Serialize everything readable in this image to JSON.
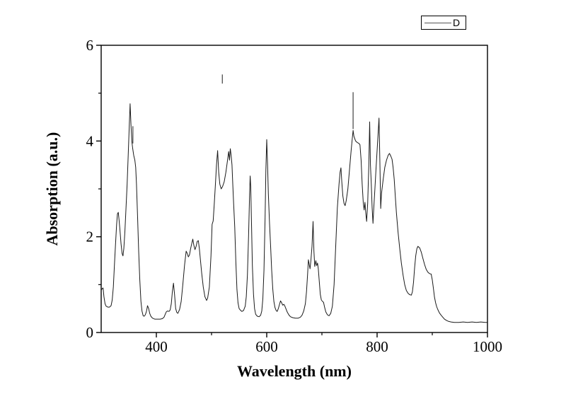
{
  "figure": {
    "background": "#ffffff",
    "frame_color": "#000000"
  },
  "chart_data": {
    "type": "line",
    "title": "",
    "xlabel": "Wavelength (nm)",
    "ylabel": "Absorption (a.u.)",
    "legend": [
      "D"
    ],
    "legend_position": "top-right-above-frame",
    "grid": false,
    "line_color": "#1a1a1a",
    "xlim": [
      300,
      1000
    ],
    "ylim": [
      0,
      6
    ],
    "x_major_ticks": [
      400,
      600,
      800,
      1000
    ],
    "x_minor_ticks": [
      500,
      700,
      900
    ],
    "y_major_ticks": [
      0,
      2,
      4,
      6
    ],
    "y_minor_ticks": [
      1,
      3,
      5
    ],
    "series": [
      {
        "name": "D",
        "points": [
          [
            300,
            0.88
          ],
          [
            302,
            0.92
          ],
          [
            303.5,
            0.93
          ],
          [
            305,
            0.75
          ],
          [
            307,
            0.6
          ],
          [
            309,
            0.55
          ],
          [
            312,
            0.53
          ],
          [
            315,
            0.53
          ],
          [
            318,
            0.56
          ],
          [
            320,
            0.68
          ],
          [
            322,
            0.95
          ],
          [
            324,
            1.4
          ],
          [
            326,
            1.85
          ],
          [
            328,
            2.25
          ],
          [
            329.5,
            2.48
          ],
          [
            331,
            2.51
          ],
          [
            332.5,
            2.35
          ],
          [
            334,
            2.15
          ],
          [
            336,
            1.85
          ],
          [
            338,
            1.65
          ],
          [
            339.5,
            1.6
          ],
          [
            341,
            1.75
          ],
          [
            343,
            2.1
          ],
          [
            345,
            2.6
          ],
          [
            347,
            3.1
          ],
          [
            349,
            3.7
          ],
          [
            351,
            4.35
          ],
          [
            352.5,
            4.78
          ],
          [
            354,
            4.35
          ],
          [
            355.5,
            4.0
          ],
          [
            357,
            3.85
          ],
          [
            359,
            3.7
          ],
          [
            361,
            3.6
          ],
          [
            362.5,
            3.45
          ],
          [
            364,
            3.1
          ],
          [
            366,
            2.4
          ],
          [
            368,
            1.7
          ],
          [
            370,
            1.1
          ],
          [
            372,
            0.65
          ],
          [
            374,
            0.45
          ],
          [
            376,
            0.35
          ],
          [
            378,
            0.34
          ],
          [
            380,
            0.37
          ],
          [
            382,
            0.44
          ],
          [
            384,
            0.56
          ],
          [
            386,
            0.5
          ],
          [
            388,
            0.4
          ],
          [
            390,
            0.34
          ],
          [
            393,
            0.3
          ],
          [
            397,
            0.28
          ],
          [
            402,
            0.28
          ],
          [
            407,
            0.28
          ],
          [
            411,
            0.29
          ],
          [
            414,
            0.32
          ],
          [
            416,
            0.38
          ],
          [
            418,
            0.43
          ],
          [
            420,
            0.45
          ],
          [
            423,
            0.44
          ],
          [
            425,
            0.47
          ],
          [
            427,
            0.6
          ],
          [
            429,
            0.85
          ],
          [
            431,
            1.03
          ],
          [
            433,
            0.8
          ],
          [
            435,
            0.5
          ],
          [
            437,
            0.42
          ],
          [
            439,
            0.4
          ],
          [
            442,
            0.48
          ],
          [
            445,
            0.65
          ],
          [
            448,
            1.0
          ],
          [
            451,
            1.4
          ],
          [
            454,
            1.7
          ],
          [
            456,
            1.65
          ],
          [
            458,
            1.58
          ],
          [
            460,
            1.62
          ],
          [
            462,
            1.75
          ],
          [
            464,
            1.85
          ],
          [
            466,
            1.95
          ],
          [
            468,
            1.82
          ],
          [
            470,
            1.73
          ],
          [
            472,
            1.8
          ],
          [
            474,
            1.9
          ],
          [
            476,
            1.92
          ],
          [
            478,
            1.75
          ],
          [
            480,
            1.5
          ],
          [
            482,
            1.25
          ],
          [
            485,
            0.95
          ],
          [
            488,
            0.75
          ],
          [
            491,
            0.67
          ],
          [
            493,
            0.72
          ],
          [
            496,
            0.95
          ],
          [
            499,
            1.6
          ],
          [
            501,
            2.26
          ],
          [
            503,
            2.33
          ],
          [
            505,
            2.7
          ],
          [
            507,
            3.1
          ],
          [
            509,
            3.5
          ],
          [
            511,
            3.8
          ],
          [
            513,
            3.35
          ],
          [
            515,
            3.1
          ],
          [
            517.5,
            3.0
          ],
          [
            520,
            3.05
          ],
          [
            523,
            3.15
          ],
          [
            526,
            3.35
          ],
          [
            529,
            3.6
          ],
          [
            531,
            3.78
          ],
          [
            532.5,
            3.6
          ],
          [
            534,
            3.84
          ],
          [
            535.5,
            3.7
          ],
          [
            537,
            3.5
          ],
          [
            538.5,
            3.1
          ],
          [
            540,
            2.7
          ],
          [
            542,
            2.2
          ],
          [
            544,
            1.5
          ],
          [
            546,
            0.9
          ],
          [
            548,
            0.62
          ],
          [
            550,
            0.5
          ],
          [
            552,
            0.47
          ],
          [
            555,
            0.44
          ],
          [
            558,
            0.46
          ],
          [
            561,
            0.55
          ],
          [
            563,
            0.75
          ],
          [
            565,
            1.2
          ],
          [
            567,
            2.0
          ],
          [
            569,
            2.9
          ],
          [
            570,
            3.27
          ],
          [
            571,
            3.05
          ],
          [
            572.5,
            2.2
          ],
          [
            574,
            1.4
          ],
          [
            576,
            0.8
          ],
          [
            578,
            0.5
          ],
          [
            580,
            0.38
          ],
          [
            583,
            0.34
          ],
          [
            586,
            0.33
          ],
          [
            589,
            0.36
          ],
          [
            591,
            0.45
          ],
          [
            593,
            0.7
          ],
          [
            595,
            1.3
          ],
          [
            597,
            2.4
          ],
          [
            598.5,
            3.4
          ],
          [
            600,
            4.03
          ],
          [
            601.5,
            3.5
          ],
          [
            603,
            2.9
          ],
          [
            605,
            2.3
          ],
          [
            607,
            1.8
          ],
          [
            609,
            1.3
          ],
          [
            611,
            0.9
          ],
          [
            613,
            0.65
          ],
          [
            615,
            0.52
          ],
          [
            617,
            0.46
          ],
          [
            619,
            0.44
          ],
          [
            621,
            0.5
          ],
          [
            623,
            0.58
          ],
          [
            625,
            0.66
          ],
          [
            627,
            0.62
          ],
          [
            629,
            0.57
          ],
          [
            631,
            0.59
          ],
          [
            633,
            0.55
          ],
          [
            635,
            0.49
          ],
          [
            637,
            0.43
          ],
          [
            640,
            0.37
          ],
          [
            643,
            0.33
          ],
          [
            647,
            0.31
          ],
          [
            652,
            0.3
          ],
          [
            657,
            0.3
          ],
          [
            661,
            0.32
          ],
          [
            664,
            0.36
          ],
          [
            667,
            0.45
          ],
          [
            670,
            0.6
          ],
          [
            672,
            0.85
          ],
          [
            674,
            1.2
          ],
          [
            675.5,
            1.52
          ],
          [
            677,
            1.42
          ],
          [
            678.5,
            1.33
          ],
          [
            680,
            1.5
          ],
          [
            682,
            1.8
          ],
          [
            684,
            2.32
          ],
          [
            685.5,
            1.7
          ],
          [
            687,
            1.38
          ],
          [
            689,
            1.5
          ],
          [
            690.5,
            1.4
          ],
          [
            692,
            1.45
          ],
          [
            693.5,
            1.33
          ],
          [
            695,
            1.1
          ],
          [
            697,
            0.8
          ],
          [
            699,
            0.68
          ],
          [
            701,
            0.65
          ],
          [
            703,
            0.63
          ],
          [
            705,
            0.52
          ],
          [
            707,
            0.43
          ],
          [
            710,
            0.37
          ],
          [
            713,
            0.35
          ],
          [
            716,
            0.4
          ],
          [
            719,
            0.55
          ],
          [
            722,
            1.0
          ],
          [
            725,
            1.8
          ],
          [
            728,
            2.6
          ],
          [
            731,
            3.1
          ],
          [
            733,
            3.35
          ],
          [
            734.5,
            3.44
          ],
          [
            736,
            3.15
          ],
          [
            738,
            2.85
          ],
          [
            740,
            2.7
          ],
          [
            742,
            2.65
          ],
          [
            744,
            2.75
          ],
          [
            747,
            3.0
          ],
          [
            750,
            3.4
          ],
          [
            753,
            3.8
          ],
          [
            755,
            4.05
          ],
          [
            756.5,
            4.22
          ],
          [
            758,
            4.1
          ],
          [
            761,
            4.0
          ],
          [
            764,
            3.97
          ],
          [
            767,
            3.95
          ],
          [
            769,
            3.92
          ],
          [
            771,
            3.6
          ],
          [
            773,
            3.1
          ],
          [
            775,
            2.7
          ],
          [
            776.5,
            2.56
          ],
          [
            778,
            2.72
          ],
          [
            779.5,
            2.5
          ],
          [
            781,
            2.32
          ],
          [
            783,
            2.7
          ],
          [
            785,
            3.5
          ],
          [
            786.5,
            4.4
          ],
          [
            788,
            3.5
          ],
          [
            789.5,
            3.1
          ],
          [
            791,
            2.6
          ],
          [
            792.5,
            2.28
          ],
          [
            794,
            2.6
          ],
          [
            796,
            3.0
          ],
          [
            798,
            3.4
          ],
          [
            800,
            3.8
          ],
          [
            802,
            4.2
          ],
          [
            803.5,
            4.48
          ],
          [
            805,
            3.6
          ],
          [
            806.5,
            2.59
          ],
          [
            808,
            2.9
          ],
          [
            811,
            3.2
          ],
          [
            814,
            3.45
          ],
          [
            817,
            3.6
          ],
          [
            820,
            3.7
          ],
          [
            822.5,
            3.74
          ],
          [
            825,
            3.68
          ],
          [
            827,
            3.62
          ],
          [
            829,
            3.45
          ],
          [
            831,
            3.2
          ],
          [
            833,
            2.85
          ],
          [
            835,
            2.5
          ],
          [
            838,
            2.1
          ],
          [
            841,
            1.75
          ],
          [
            844,
            1.45
          ],
          [
            847,
            1.2
          ],
          [
            850,
            1.0
          ],
          [
            853,
            0.88
          ],
          [
            856,
            0.82
          ],
          [
            859,
            0.79
          ],
          [
            862,
            0.78
          ],
          [
            864,
            0.85
          ],
          [
            866,
            1.05
          ],
          [
            868,
            1.35
          ],
          [
            870,
            1.6
          ],
          [
            872,
            1.75
          ],
          [
            874,
            1.8
          ],
          [
            877,
            1.77
          ],
          [
            880,
            1.68
          ],
          [
            883,
            1.55
          ],
          [
            886,
            1.42
          ],
          [
            889,
            1.32
          ],
          [
            892,
            1.26
          ],
          [
            895,
            1.23
          ],
          [
            898,
            1.22
          ],
          [
            900,
            1.1
          ],
          [
            902,
            0.92
          ],
          [
            904,
            0.74
          ],
          [
            906,
            0.62
          ],
          [
            908,
            0.54
          ],
          [
            910,
            0.48
          ],
          [
            913,
            0.41
          ],
          [
            916,
            0.36
          ],
          [
            919,
            0.32
          ],
          [
            922,
            0.28
          ],
          [
            926,
            0.25
          ],
          [
            930,
            0.23
          ],
          [
            934,
            0.22
          ],
          [
            940,
            0.21
          ],
          [
            948,
            0.21
          ],
          [
            956,
            0.22
          ],
          [
            964,
            0.21
          ],
          [
            972,
            0.22
          ],
          [
            980,
            0.21
          ],
          [
            988,
            0.22
          ],
          [
            996,
            0.21
          ],
          [
            1000,
            0.21
          ]
        ]
      }
    ],
    "detached_segments": [
      {
        "x": 357.5,
        "y1": 3.95,
        "y2": 4.31
      },
      {
        "x": 519.5,
        "y1": 5.2,
        "y2": 5.39
      },
      {
        "x": 756.5,
        "y1": 4.25,
        "y2": 5.02
      }
    ]
  }
}
